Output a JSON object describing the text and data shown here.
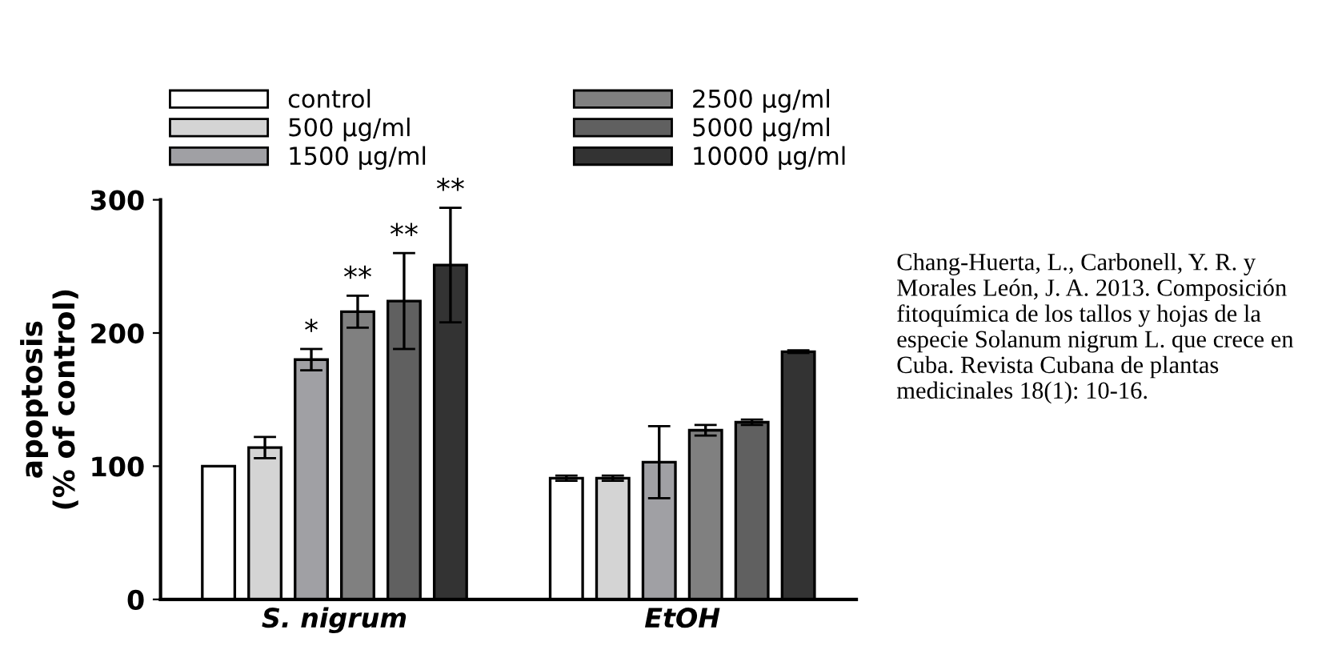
{
  "chart_data": {
    "type": "bar",
    "ylabel": "apoptosis\n(% of control)",
    "categories": [
      "S. nigrum",
      "EtOH"
    ],
    "series": [
      {
        "name": "control",
        "color": "#ffffff",
        "values": [
          100,
          91
        ],
        "errors": [
          null,
          2
        ]
      },
      {
        "name": "500 µg/ml",
        "color": "#d4d4d4",
        "values": [
          114,
          91
        ],
        "errors": [
          8,
          2
        ]
      },
      {
        "name": "1500 µg/ml",
        "color": "#a0a0a4",
        "values": [
          180,
          103
        ],
        "errors": [
          8,
          27
        ]
      },
      {
        "name": "2500 µg/ml",
        "color": "#808080",
        "values": [
          216,
          127
        ],
        "errors": [
          12,
          4
        ]
      },
      {
        "name": "5000 µg/ml",
        "color": "#606060",
        "values": [
          224,
          133
        ],
        "errors": [
          36,
          2
        ]
      },
      {
        "name": "10000 µg/ml",
        "color": "#333333",
        "values": [
          251,
          186
        ],
        "errors": [
          43,
          1
        ]
      }
    ],
    "ylim": [
      0,
      300
    ],
    "yticks": [
      0,
      100,
      200,
      300
    ],
    "grid": false,
    "legend": "top",
    "annotations": [
      "Chang-Huerta, L., Carbonell, Y. R. y Morales León, J. A. 2013. Composición fitoquímica de los tallos y hojas de la especie Solanum nigrum L. que crece en Cuba. Revista Cubana de plantas medicinales 18(1): 10-16.",
      "*",
      "**",
      "**",
      "**"
    ]
  }
}
